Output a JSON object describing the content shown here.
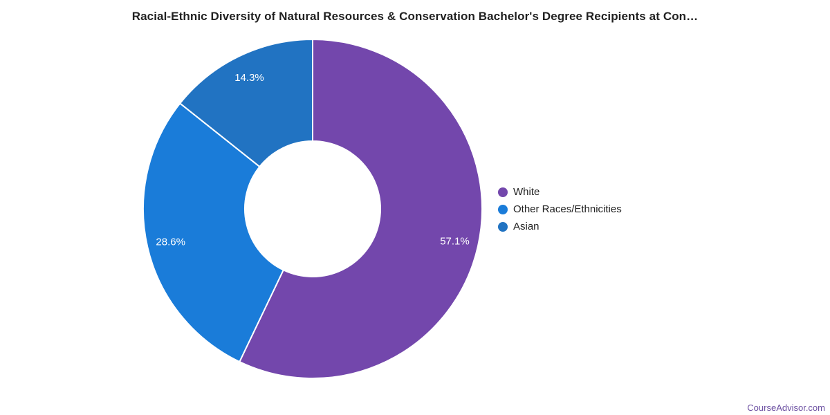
{
  "header": {
    "title": "Racial-Ethnic Diversity of Natural Resources & Conservation Bachelor's Degree Recipients at Con…"
  },
  "chart_data": {
    "type": "pie",
    "subtype": "donut",
    "title": "Racial-Ethnic Diversity of Natural Resources & Conservation Bachelor's Degree Recipients at Con…",
    "slices": [
      {
        "label": "White",
        "value": 57.1,
        "pct_label": "57.1%",
        "color": "#7347ac"
      },
      {
        "label": "Other Races/Ethnicities",
        "value": 28.6,
        "pct_label": "28.6%",
        "color": "#1a7cd9"
      },
      {
        "label": "Asian",
        "value": 14.3,
        "pct_label": "14.3%",
        "color": "#2173c2"
      }
    ],
    "start_angle_deg": 0,
    "direction": "clockwise",
    "donut_hole_ratio": 0.4,
    "slice_divider_color": "#ffffff",
    "slice_label_color": "#ffffff",
    "legend_position": "right"
  },
  "watermark": {
    "label": "CourseAdvisor.com",
    "color": "#6b4fa1"
  }
}
